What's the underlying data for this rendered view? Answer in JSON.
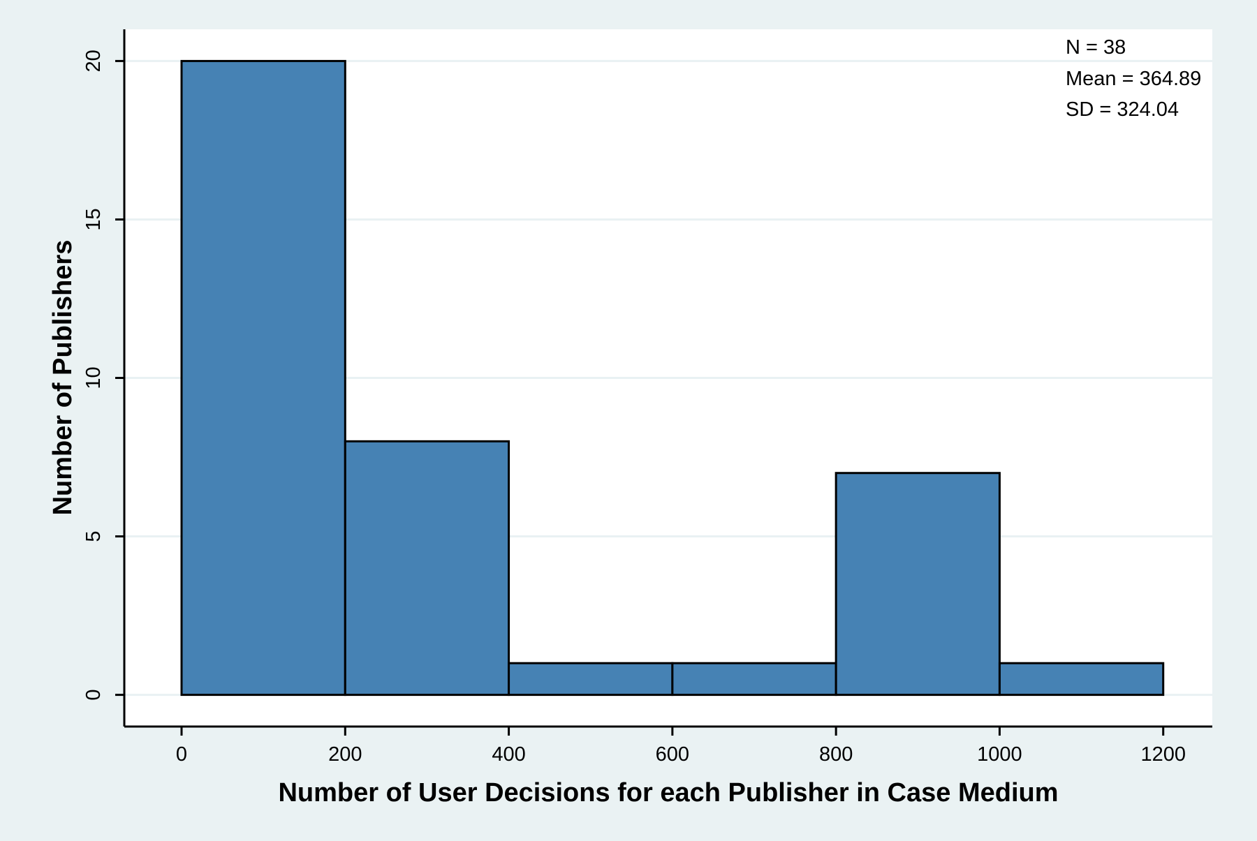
{
  "chart_data": {
    "type": "bar",
    "subtype": "histogram",
    "bins": [
      {
        "start": 0,
        "end": 200,
        "count": 20
      },
      {
        "start": 200,
        "end": 400,
        "count": 8
      },
      {
        "start": 400,
        "end": 600,
        "count": 1
      },
      {
        "start": 600,
        "end": 800,
        "count": 1
      },
      {
        "start": 800,
        "end": 1000,
        "count": 7
      },
      {
        "start": 1000,
        "end": 1200,
        "count": 1
      }
    ],
    "xlabel": "Number of User Decisions for each Publisher in Case Medium",
    "ylabel": "Number of Publishers",
    "xticks": [
      "0",
      "200",
      "400",
      "600",
      "800",
      "1000",
      "1200"
    ],
    "yticks": [
      "0",
      "5",
      "10",
      "15",
      "20"
    ],
    "xlim": [
      -70,
      1260
    ],
    "ylim": [
      -1,
      21
    ],
    "grid": "horizontal",
    "annotations": [
      "N = 38",
      "Mean = 364.89",
      "SD = 324.04"
    ],
    "colors": {
      "bar_fill": "#4682b4",
      "bar_edge": "#000000",
      "plot_background": "#ffffff",
      "page_background": "#eaf2f3",
      "grid": "#e9f1f3"
    }
  }
}
